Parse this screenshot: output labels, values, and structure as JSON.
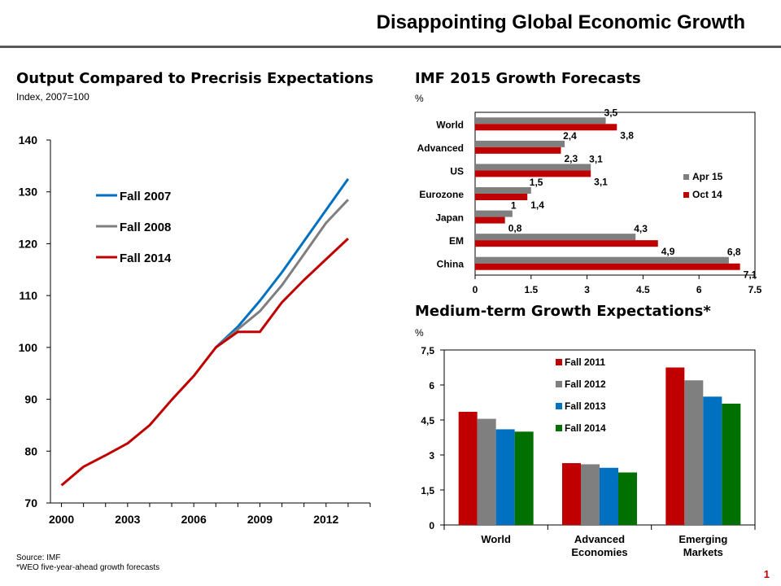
{
  "slide": {
    "title": "Disappointing Global Economic Growth",
    "page_number": "1",
    "source": "Source: IMF",
    "footnote": "*WEO five-year-ahead growth forecasts"
  },
  "colors": {
    "red": "#c00000",
    "gray": "#7f7f7f",
    "blue": "#0070c0",
    "green": "#007000",
    "rule": "#595959"
  },
  "chart_data": [
    {
      "type": "line",
      "title": "Output Compared to Precrisis Expectations",
      "subtitle": "Index, 2007=100",
      "xlim": [
        1999.5,
        2014
      ],
      "ylim": [
        70,
        140
      ],
      "xticks": [
        "2000",
        "2003",
        "2006",
        "2009",
        "2012"
      ],
      "yticks": [
        "70",
        "80",
        "90",
        "100",
        "110",
        "120",
        "130",
        "140"
      ],
      "legend_position": "upper-left",
      "series": [
        {
          "name": "Fall 2007",
          "color": "#0070c0",
          "points": [
            [
              2007,
              100
            ],
            [
              2008,
              104
            ],
            [
              2009,
              109
            ],
            [
              2010,
              114.5
            ],
            [
              2011,
              120.5
            ],
            [
              2012,
              126.5
            ],
            [
              2013,
              132.5
            ]
          ]
        },
        {
          "name": "Fall 2008",
          "color": "#7f7f7f",
          "points": [
            [
              2007,
              100
            ],
            [
              2008,
              103.5
            ],
            [
              2009,
              107
            ],
            [
              2010,
              112
            ],
            [
              2011,
              118
            ],
            [
              2012,
              124
            ],
            [
              2013,
              128.5
            ]
          ]
        },
        {
          "name": "Fall 2014",
          "color": "#c00000",
          "points": [
            [
              2000,
              73.4
            ],
            [
              2001,
              77
            ],
            [
              2002,
              79.2
            ],
            [
              2003,
              81.5
            ],
            [
              2004,
              85
            ],
            [
              2005,
              89.9
            ],
            [
              2006,
              94.5
            ],
            [
              2007,
              100
            ],
            [
              2008,
              103
            ],
            [
              2009,
              103
            ],
            [
              2010,
              108.7
            ],
            [
              2011,
              113
            ],
            [
              2012,
              117
            ],
            [
              2013,
              121
            ]
          ]
        }
      ]
    },
    {
      "type": "bar",
      "orientation": "horizontal",
      "title": "IMF 2015 Growth Forecasts",
      "subtitle": "%",
      "categories": [
        "World",
        "Advanced",
        "US",
        "Eurozone",
        "Japan",
        "EM",
        "China"
      ],
      "xlim": [
        0,
        7.5
      ],
      "xticks": [
        "0",
        "1.5",
        "3",
        "4.5",
        "6",
        "7.5"
      ],
      "legend_position": "right",
      "series": [
        {
          "name": "Apr 15",
          "color": "#7f7f7f",
          "values": [
            3.5,
            2.4,
            3.1,
            1.5,
            1,
            4.3,
            6.8
          ],
          "labels": [
            "3,5",
            "2,4",
            "3,1",
            "1,5",
            "1",
            "4,3",
            "6,8"
          ]
        },
        {
          "name": "Oct 14",
          "color": "#c00000",
          "values": [
            3.8,
            2.3,
            3.1,
            1.4,
            0.8,
            4.9,
            7.1
          ],
          "labels": [
            "3,8",
            "2,3",
            "3,1",
            "1,4",
            "0,8",
            "4,9",
            "7,1"
          ]
        }
      ]
    },
    {
      "type": "bar",
      "orientation": "vertical",
      "title": "Medium-term Growth Expectations*",
      "subtitle": "%",
      "categories": [
        [
          "World"
        ],
        [
          "Advanced",
          "Economies"
        ],
        [
          "Emerging",
          "Markets"
        ]
      ],
      "ylim": [
        0,
        7.5
      ],
      "yticks": [
        "0",
        "1,5",
        "3",
        "4,5",
        "6",
        "7,5"
      ],
      "legend_position": "top-center",
      "series": [
        {
          "name": "Fall 2011",
          "color": "#c00000",
          "values": [
            4.85,
            2.65,
            6.75
          ]
        },
        {
          "name": "Fall 2012",
          "color": "#7f7f7f",
          "values": [
            4.55,
            2.6,
            6.2
          ]
        },
        {
          "name": "Fall 2013",
          "color": "#0070c0",
          "values": [
            4.1,
            2.45,
            5.5
          ]
        },
        {
          "name": "Fall 2014",
          "color": "#007000",
          "values": [
            4.0,
            2.25,
            5.2
          ]
        }
      ]
    }
  ]
}
